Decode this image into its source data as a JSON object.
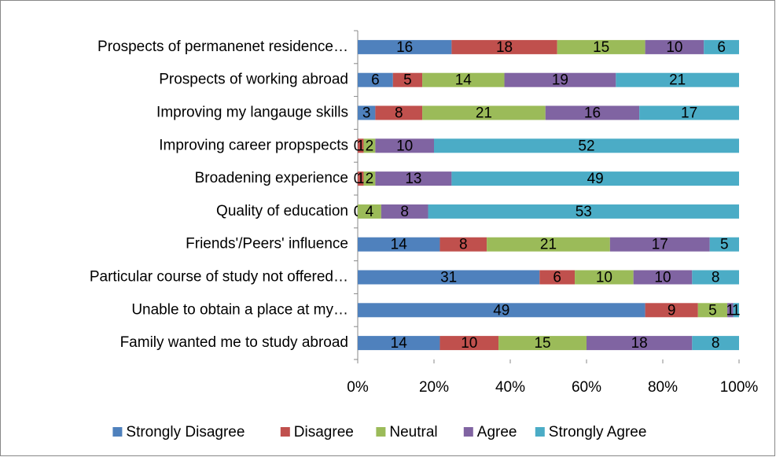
{
  "chart_data": {
    "type": "bar",
    "orientation": "horizontal",
    "stack": "percent",
    "categories": [
      "Prospects of permanenet residence…",
      "Prospects of working abroad",
      "Improving my langauge skills",
      "Improving career propspects",
      "Broadening experience",
      "Quality of education",
      "Friends'/Peers' influence",
      "Particular course of study not offered…",
      "Unable to obtain a place at my…",
      "Family wanted me to study abroad"
    ],
    "series": [
      {
        "name": "Strongly Disagree",
        "color": "#4f81bd",
        "values": [
          16,
          6,
          3,
          0,
          0,
          0,
          14,
          31,
          49,
          14
        ]
      },
      {
        "name": "Disagree",
        "color": "#c0504d",
        "values": [
          18,
          5,
          8,
          1,
          1,
          0,
          8,
          6,
          9,
          10
        ]
      },
      {
        "name": "Neutral",
        "color": "#9bbb59",
        "values": [
          15,
          14,
          21,
          2,
          2,
          4,
          21,
          10,
          5,
          15
        ]
      },
      {
        "name": "Agree",
        "color": "#8064a2",
        "values": [
          10,
          19,
          16,
          10,
          13,
          8,
          17,
          10,
          1,
          18
        ]
      },
      {
        "name": "Strongly Agree",
        "color": "#4bacc6",
        "values": [
          6,
          21,
          17,
          52,
          49,
          53,
          5,
          8,
          1,
          8
        ]
      }
    ],
    "xlim": [
      0,
      100
    ],
    "xticks": [
      {
        "value": 0,
        "label": "0%"
      },
      {
        "value": 20,
        "label": "20%"
      },
      {
        "value": 40,
        "label": "40%"
      },
      {
        "value": 60,
        "label": "60%"
      },
      {
        "value": 80,
        "label": "80%"
      },
      {
        "value": 100,
        "label": "100%"
      }
    ],
    "legend": "bottom"
  }
}
